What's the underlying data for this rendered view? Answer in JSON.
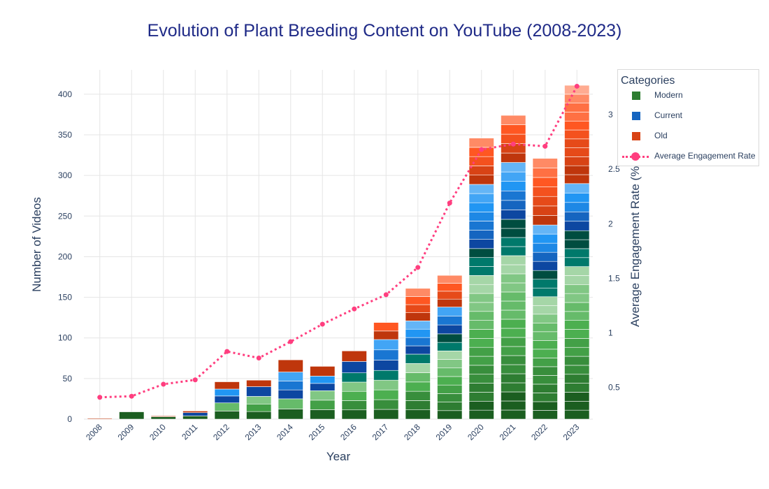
{
  "chart_data": {
    "type": "bar",
    "title": "Evolution of Plant Breeding Content on YouTube (2008-2023)",
    "xlabel": "Year",
    "ylabel": "Number of Videos",
    "y2label": "Average Engagement Rate (%)",
    "categories": [
      "2008",
      "2009",
      "2010",
      "2011",
      "2012",
      "2013",
      "2014",
      "2015",
      "2016",
      "2017",
      "2018",
      "2019",
      "2020",
      "2021",
      "2022",
      "2023"
    ],
    "ylim": [
      0,
      430
    ],
    "yticks": [
      0,
      50,
      100,
      150,
      200,
      250,
      300,
      350,
      400
    ],
    "y2lim": [
      0.21,
      3.41
    ],
    "y2ticks": [
      0.5,
      1,
      1.5,
      2,
      2.5,
      3
    ],
    "y2tick_labels": [
      "0.5",
      "1",
      "1.5",
      "2",
      "2.5",
      "3"
    ],
    "grid": true,
    "legend_position": "top-right",
    "legend": {
      "title": "Categories",
      "items": [
        {
          "name": "Modern",
          "kind": "bar",
          "color": "#2e7d32"
        },
        {
          "name": "Current",
          "kind": "bar",
          "color": "#1565c0"
        },
        {
          "name": "Old",
          "kind": "bar",
          "color": "#d84315"
        },
        {
          "name": "Average Engagement Rate",
          "kind": "line",
          "color": "#ff3e7f"
        }
      ]
    },
    "series": [
      {
        "name": "Modern",
        "values": [
          0,
          9,
          3,
          4,
          20,
          28,
          25,
          35,
          57,
          60,
          80,
          105,
          210,
          246,
          183,
          232
        ],
        "palette": [
          "#1b5e20",
          "#2e7d32",
          "#388e3c",
          "#43a047",
          "#4caf50",
          "#66bb6a",
          "#81c784",
          "#a5d6a7",
          "#00796b",
          "#004d40"
        ]
      },
      {
        "name": "Current",
        "values": [
          0,
          0,
          0,
          4,
          17,
          12,
          33,
          18,
          14,
          38,
          41,
          33,
          79,
          70,
          56,
          58
        ],
        "palette": [
          "#0d47a1",
          "#1565c0",
          "#1976d2",
          "#1e88e5",
          "#2196f3",
          "#42a5f5",
          "#64b5f6",
          "#90caf9"
        ]
      },
      {
        "name": "Old",
        "values": [
          1,
          0,
          1,
          2,
          9,
          8,
          15,
          12,
          13,
          21,
          40,
          39,
          57,
          58,
          82,
          121
        ],
        "palette": [
          "#bf360c",
          "#d84315",
          "#e64a19",
          "#f4511e",
          "#ff5722",
          "#ff7043",
          "#ff8a65",
          "#ffab91"
        ]
      }
    ],
    "line": {
      "name": "Average Engagement Rate",
      "values": [
        0.41,
        0.42,
        0.53,
        0.57,
        0.83,
        0.77,
        0.92,
        1.08,
        1.22,
        1.35,
        1.6,
        2.19,
        2.68,
        2.73,
        2.71,
        3.26
      ],
      "color": "#ff3e7f"
    },
    "colors": {
      "grid": "#e5e5e5",
      "axis_text": "#2a3f5f",
      "title": "#1f2a87"
    }
  }
}
